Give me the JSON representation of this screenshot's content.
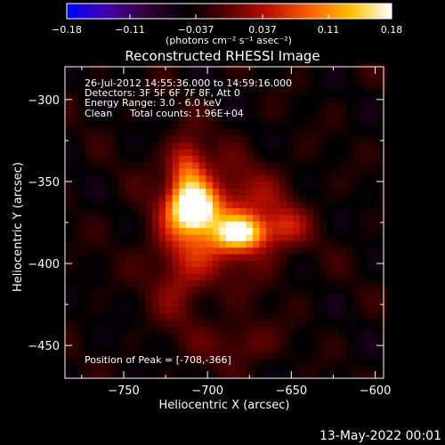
{
  "colorbar": {
    "tick_labels": [
      "-0.18",
      "-0.11",
      "-0.037",
      "0.037",
      "0.11",
      "0.18"
    ],
    "tick_values": [
      -0.18,
      -0.11,
      -0.037,
      0.037,
      0.11,
      0.18
    ],
    "range": [
      -0.18,
      0.18
    ],
    "units_label": "(photons cm⁻² s⁻¹ asec⁻²)",
    "colors": [
      "#0000ff",
      "#4400aa",
      "#330033",
      "#000000",
      "#5a0000",
      "#c01000",
      "#ff6000",
      "#ffc000",
      "#ffffff"
    ]
  },
  "title": "Reconstructed RHESSI Image",
  "info": {
    "time": "26-Jul-2012 14:55:36.000 to 14:59:16.000",
    "detectors": "Detectors: 3F 5F 6F 7F 8F, Att 0",
    "energy": "Energy Range: 3.0 - 6.0 keV",
    "method": "Clean",
    "counts": "Total counts: 1.96E+04",
    "peak": "Position of Peak = [-708,-366]"
  },
  "footer": {
    "date": "13-May-2022 00:01"
  },
  "chart_data": {
    "type": "heatmap",
    "title": "Reconstructed RHESSI Image",
    "xlabel": "Heliocentric X (arcsec)",
    "ylabel": "Heliocentric Y (arcsec)",
    "xlim": [
      -785,
      -595
    ],
    "ylim": [
      -470,
      -280
    ],
    "x_ticks": [
      -750,
      -700,
      -650,
      -600
    ],
    "y_ticks": [
      -300,
      -350,
      -400,
      -450
    ],
    "x_tick_labels": [
      "−750",
      "−700",
      "−650",
      "−600"
    ],
    "y_tick_labels": [
      "−300",
      "−350",
      "−400",
      "−450"
    ],
    "peak_position": [
      -708,
      -366
    ],
    "peak_value": 0.18,
    "background_value": -0.04,
    "sources": [
      {
        "x": -708,
        "y": -366,
        "sx": 9,
        "sy": 9,
        "amp": 0.2
      },
      {
        "x": -680,
        "y": -381,
        "sx": 11,
        "sy": 7,
        "amp": 0.16
      },
      {
        "x": -712,
        "y": -343,
        "sx": 8,
        "sy": 14,
        "amp": 0.11
      },
      {
        "x": -690,
        "y": -373,
        "sx": 26,
        "sy": 22,
        "amp": 0.1
      },
      {
        "x": -716,
        "y": -405,
        "sx": 12,
        "sy": 24,
        "amp": 0.06
      },
      {
        "x": -680,
        "y": -448,
        "sx": 14,
        "sy": 10,
        "amp": 0.05
      },
      {
        "x": -653,
        "y": -377,
        "sx": 8,
        "sy": 8,
        "amp": 0.05
      }
    ]
  }
}
